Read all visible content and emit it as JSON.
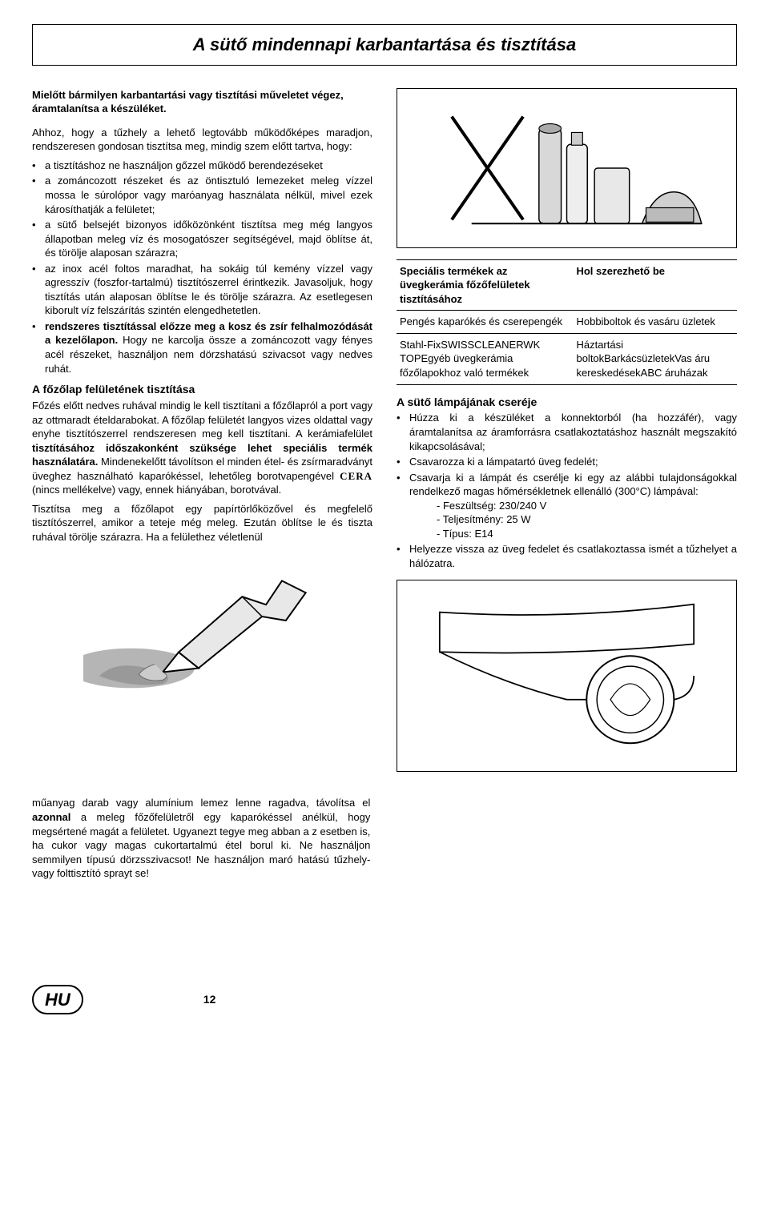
{
  "title": "A sütő mindennapi karbantartása és tisztítása",
  "left": {
    "intro": "Mielőtt bármilyen karbantartási vagy tisztítási műveletet végez, áramtalanítsa a készüléket.",
    "p1": "Ahhoz, hogy a tűzhely a lehető legtovább működőképes maradjon, rendszeresen gondosan tisztítsa meg, mindig szem előtt tartva, hogy:",
    "b1": "a tisztításhoz ne használjon gőzzel működő berendezéseket",
    "b2": "a zománcozott részeket és az öntisztuló lemezeket meleg vízzel mossa le súrolópor vagy maróanyag használata nélkül, mivel ezek károsíthatják a felületet;",
    "b3": "a sütő belsejét bizonyos időközönként tisztítsa meg még langyos állapotban meleg víz és mosogatószer segítségével, majd öblítse át, és törölje alaposan szárazra;",
    "b4": "az inox acél foltos maradhat, ha sokáig túl kemény vízzel vagy agresszív (foszfor-tartalmú) tisztítószerrel érintkezik. Javasoljuk, hogy tisztítás után alaposan öblítse le és törölje szárazra. Az esetlegesen kiborult víz felszárítás szintén elengedhetetlen.",
    "b5a": "rendszeres tisztítással előzze meg a kosz és zsír felhalmozódását a kezelőlapon.",
    "b5b": "  Hogy ne karcolja össze a zománcozott vagy fényes acél részeket, használjon nem dörzshatású szivacsot vagy nedves ruhát.",
    "section_h": "A főzőlap felületének tisztítása",
    "p2a": "Főzés előtt nedves ruhával mindig le kell tisztítani a főzőlapról a port vagy az ottmaradt ételdarabokat. A főzőlap felületét langyos vizes oldattal vagy enyhe tisztítószerrel rendszeresen meg kell tisztítani. A kerámiafelület ",
    "p2b": "tisztításához időszakonként szüksége lehet speciális termék használatára.",
    "p2c": " Mindenekelőtt távolítson el minden étel- és zsírmaradványt üveghez használható kaparókéssel, lehetőleg borotvapengével ",
    "p2brand": "CERA",
    "p2d": " (nincs mellékelve) vagy, ennek hiányában, borotvával.",
    "p3": "Tisztítsa meg a főzőlapot egy papírtörlőközővel és megfelelő tisztítószerrel, amikor a teteje még meleg. Ezután öblítse le és tiszta ruhával törölje szárazra. Ha a felülethez véletlenül"
  },
  "right": {
    "table": {
      "h1": "Speciális termékek az üvegkerámia főzőfelületek tisztításához",
      "h2": "Hol szerezhető be",
      "r1c1": "Pengés kaparókés és cserepengék",
      "r1c2": "Hobbiboltok és vasáru üzletek",
      "r2c1": "Stahl-FixSWISSCLEANERWK TOPEgyéb üvegkerámia főzőlapokhoz való termékek",
      "r2c2": "Háztartási boltokBarkácsüzletekVas áru kereskedésekABC áruházak"
    },
    "lamp_h": "A sütő lámpájának cseréje",
    "lamp_b1": "Húzza ki a készüléket a konnektorból (ha hozzáfér), vagy áramtalanítsa az áramforrásra csatlakoztatáshoz használt megszakító kikapcsolásával;",
    "lamp_b2": "Csavarozza ki a lámpatartó üveg fedelét;",
    "lamp_b3": "Csavarja ki a lámpát és cserélje ki egy az alábbi tulajdonságokkal rendelkező magas hőmérsékletnek ellenálló (300°C) lámpával:",
    "lamp_s1": "Feszültség: 230/240 V",
    "lamp_s2": "Teljesítmény: 25 W",
    "lamp_s3": "Típus: E14",
    "lamp_b4": "Helyezze vissza az üveg fedelet és csatlakoztassa ismét a tűzhelyet a hálózatra."
  },
  "bottom": {
    "p": "műanyag darab vagy alumínium lemez lenne ragadva, távolítsa el <b>azonnal</b> a meleg főzőfelületről egy kaparókéssel anélkül, hogy megsértené magát a felületet. Ugyanezt tegye meg abban a z esetben is, ha cukor vagy magas cukortartalmú étel borul ki. Ne használjon semmilyen típusú dörzsszivacsot! Ne használjon maró hatású tűzhely- vagy folttisztító sprayt se!"
  },
  "footer": {
    "lang": "HU",
    "page": "12"
  },
  "colors": {
    "text": "#000000",
    "bg": "#ffffff",
    "illus_gray": "#b5b5b5",
    "illus_light": "#e8e8e8"
  }
}
